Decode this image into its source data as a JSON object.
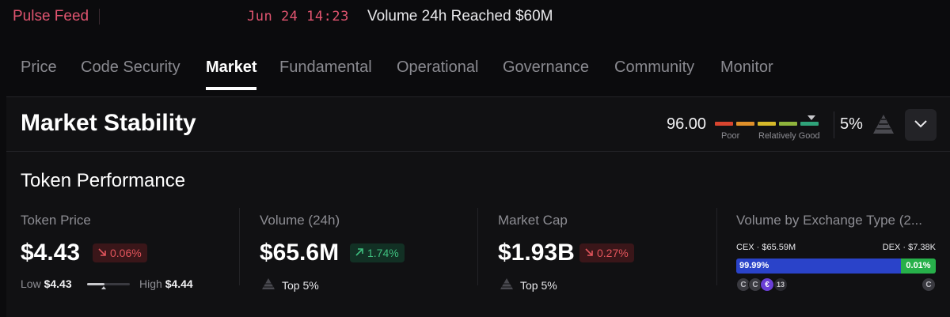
{
  "ticker": {
    "brand": "Pulse Feed",
    "time": "Jun 24 14:23",
    "message": "Volume 24h Reached $60M"
  },
  "tabs": [
    {
      "label": "Price",
      "active": false
    },
    {
      "label": "Code Security",
      "active": false
    },
    {
      "label": "Market",
      "active": true
    },
    {
      "label": "Fundamental",
      "active": false
    },
    {
      "label": "Operational",
      "active": false
    },
    {
      "label": "Governance",
      "active": false
    },
    {
      "label": "Community",
      "active": false
    },
    {
      "label": "Monitor",
      "active": false
    }
  ],
  "section": {
    "title": "Market Stability",
    "score": "96.00",
    "rating_low_label": "Poor",
    "rating_high_label": "Relatively Good",
    "rating_colors": [
      "#d9452f",
      "#e0902a",
      "#d6b92a",
      "#8fb43c",
      "#2fa37a"
    ],
    "rating_level_segment": 5,
    "percentile": "5%",
    "collapse_icon": "chevron-down-icon"
  },
  "performance": {
    "title": "Token Performance",
    "token_price": {
      "label": "Token Price",
      "value": "$4.43",
      "change": "0.06%",
      "direction": "down",
      "low_label": "Low",
      "low_value": "$4.43",
      "high_label": "High",
      "high_value": "$4.44",
      "range_position": 0.4
    },
    "volume": {
      "label": "Volume (24h)",
      "value": "$65.6M",
      "change": "1.74%",
      "direction": "up",
      "rank": "Top 5%"
    },
    "market_cap": {
      "label": "Market Cap",
      "value": "$1.93B",
      "change": "0.27%",
      "direction": "down",
      "rank": "Top 5%"
    },
    "exchange": {
      "label": "Volume by Exchange Type (2...",
      "cex_label": "CEX · $65.59M",
      "dex_label": "DEX · $7.38K",
      "cex_pct": "99.99%",
      "dex_pct": "0.01%",
      "cex_share": 0.9999,
      "coin_count": "13"
    }
  }
}
